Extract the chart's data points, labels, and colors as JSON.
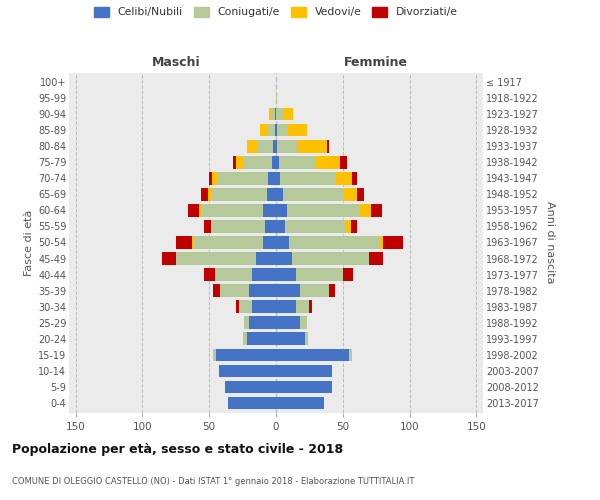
{
  "age_groups": [
    "0-4",
    "5-9",
    "10-14",
    "15-19",
    "20-24",
    "25-29",
    "30-34",
    "35-39",
    "40-44",
    "45-49",
    "50-54",
    "55-59",
    "60-64",
    "65-69",
    "70-74",
    "75-79",
    "80-84",
    "85-89",
    "90-94",
    "95-99",
    "100+"
  ],
  "birth_years": [
    "2013-2017",
    "2008-2012",
    "2003-2007",
    "1998-2002",
    "1993-1997",
    "1988-1992",
    "1983-1987",
    "1978-1982",
    "1973-1977",
    "1968-1972",
    "1963-1967",
    "1958-1962",
    "1953-1957",
    "1948-1952",
    "1943-1947",
    "1938-1942",
    "1933-1937",
    "1928-1932",
    "1923-1927",
    "1918-1922",
    "≤ 1917"
  ],
  "colors": {
    "celibi": "#4472c4",
    "coniugati": "#b5c99a",
    "vedovi": "#ffc000",
    "divorziati": "#c00000"
  },
  "male": {
    "celibi": [
      36,
      38,
      43,
      45,
      22,
      20,
      18,
      20,
      18,
      15,
      10,
      8,
      10,
      7,
      6,
      3,
      2,
      1,
      1,
      0,
      0
    ],
    "coniugati": [
      0,
      0,
      0,
      2,
      3,
      4,
      10,
      22,
      28,
      60,
      52,
      40,
      46,
      42,
      38,
      22,
      12,
      5,
      2,
      0,
      0
    ],
    "vedovi": [
      0,
      0,
      0,
      0,
      0,
      0,
      0,
      0,
      0,
      0,
      1,
      1,
      2,
      2,
      4,
      5,
      8,
      6,
      2,
      0,
      0
    ],
    "divorziati": [
      0,
      0,
      0,
      0,
      0,
      0,
      2,
      5,
      8,
      10,
      12,
      5,
      8,
      5,
      2,
      2,
      0,
      0,
      0,
      0,
      0
    ]
  },
  "female": {
    "nubili": [
      36,
      42,
      42,
      55,
      22,
      18,
      15,
      18,
      15,
      12,
      10,
      7,
      8,
      5,
      3,
      2,
      1,
      1,
      0,
      0,
      0
    ],
    "coniugate": [
      0,
      0,
      0,
      2,
      2,
      5,
      10,
      22,
      35,
      58,
      68,
      45,
      55,
      46,
      42,
      28,
      15,
      8,
      5,
      1,
      0
    ],
    "vedove": [
      0,
      0,
      0,
      0,
      0,
      0,
      0,
      0,
      0,
      0,
      2,
      4,
      8,
      10,
      12,
      18,
      22,
      14,
      8,
      0,
      0
    ],
    "divorziate": [
      0,
      0,
      0,
      0,
      0,
      0,
      2,
      4,
      8,
      10,
      15,
      5,
      8,
      5,
      4,
      5,
      2,
      0,
      0,
      0,
      0
    ]
  },
  "xlim": 155,
  "title": "Popolazione per età, sesso e stato civile - 2018",
  "subtitle": "COMUNE DI OLEGGIO CASTELLO (NO) - Dati ISTAT 1° gennaio 2018 - Elaborazione TUTTITALIA.IT",
  "xlabel_left": "Maschi",
  "xlabel_right": "Femmine",
  "ylabel_left": "Fasce di età",
  "ylabel_right": "Anni di nascita",
  "legend_labels": [
    "Celibi/Nubili",
    "Coniugati/e",
    "Vedovi/e",
    "Divorziati/e"
  ],
  "bg_color": "#ebebeb",
  "grid_color": "#cccccc"
}
